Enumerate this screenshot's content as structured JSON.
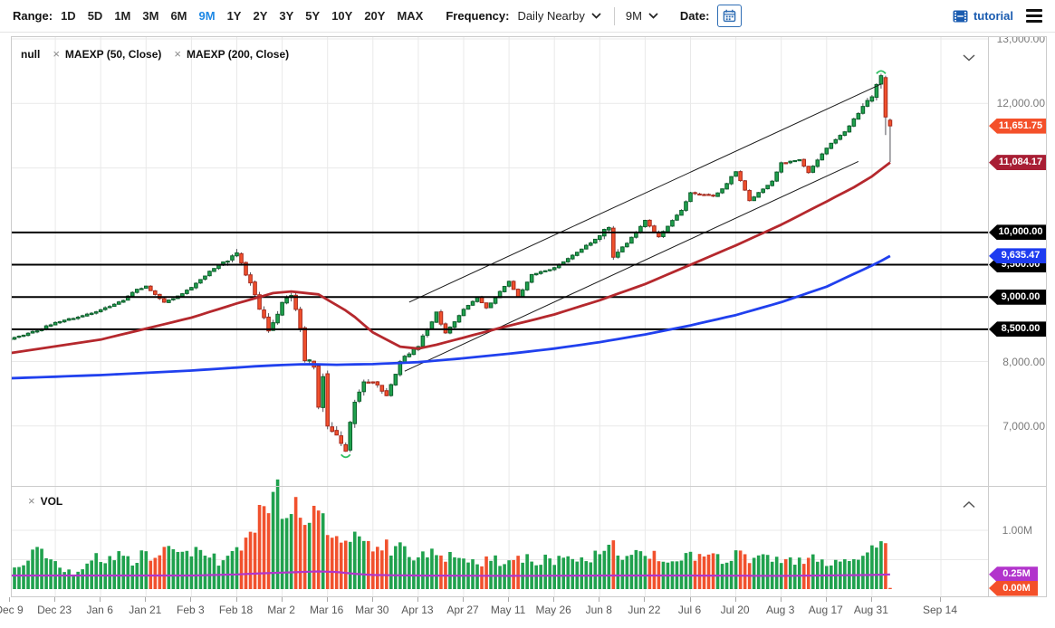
{
  "toolbar": {
    "range_label": "Range:",
    "range_options": [
      "1D",
      "5D",
      "1M",
      "3M",
      "6M",
      "9M",
      "1Y",
      "2Y",
      "3Y",
      "5Y",
      "10Y",
      "20Y",
      "MAX"
    ],
    "range_selected": "9M",
    "frequency_label": "Frequency:",
    "frequency_value": "Daily Nearby",
    "period_value": "9M",
    "date_label": "Date:",
    "tutorial_label": "tutorial"
  },
  "main_panel": {
    "legend_items": [
      {
        "label": "null",
        "removable": false
      },
      {
        "label": "MAEXP (50, Close)",
        "removable": true
      },
      {
        "label": "MAEXP (200, Close)",
        "removable": true
      }
    ]
  },
  "volume_panel": {
    "legend_items": [
      {
        "label": "VOL",
        "removable": true
      }
    ]
  },
  "right_axis": {
    "gray_labels": [
      {
        "text": "13,000.00",
        "price": 13000
      },
      {
        "text": "12,000.00",
        "price": 12000
      },
      {
        "text": "8,000.00",
        "price": 8000
      },
      {
        "text": "7,000.00",
        "price": 7000
      }
    ],
    "level_badges": [
      {
        "text": "10,000.00",
        "price": 10000
      },
      {
        "text": "9,500.00",
        "price": 9500
      },
      {
        "text": "9,000.00",
        "price": 9000
      },
      {
        "text": "8,500.00",
        "price": 8500
      }
    ],
    "value_badges": [
      {
        "text": "11,651.75",
        "price": 11651.75,
        "color": "#f4502a",
        "name": "last-price-badge"
      },
      {
        "text": "11,084.17",
        "price": 11084.17,
        "color": "#a81e34",
        "name": "ma50-value-badge"
      },
      {
        "text": "9,635.47",
        "price": 9635.47,
        "color": "#1e3cf0",
        "name": "ma200-value-badge"
      }
    ],
    "volume_gray_labels": [
      {
        "text": "1.00M",
        "value": 1.0
      }
    ],
    "volume_badges": [
      {
        "text": "0.25M",
        "value": 0.25,
        "color": "#b234cc",
        "name": "volume-ma-badge"
      },
      {
        "text": "0.00M",
        "value": 0.0,
        "color": "#f4502a",
        "name": "last-volume-badge"
      }
    ]
  },
  "colors": {
    "candle_up": "#1fa14d",
    "candle_up_border": "#0b5f2b",
    "candle_down": "#f1512d",
    "candle_down_border": "#a8291d",
    "wick": "#52525a",
    "ma50": "#b5282d",
    "ma200": "#2040ee",
    "volume_ma": "#b234cc",
    "support_line": "#000000",
    "channel_line": "#1a1a1a",
    "gridline": "#e9e9e9",
    "marker": "#2fbf62",
    "range_selected": "#1e88e5",
    "tutorial_blue": "#1b5cb0"
  },
  "chart_data": {
    "type": "candlestick",
    "x_tick_labels": [
      "Dec 9",
      "Dec 23",
      "Jan 6",
      "Jan 21",
      "Feb 3",
      "Feb 18",
      "Mar 2",
      "Mar 16",
      "Mar 30",
      "Apr 13",
      "Apr 27",
      "May 11",
      "May 26",
      "Jun 8",
      "Jun 22",
      "Jul 6",
      "Jul 20",
      "Aug 3",
      "Aug 17",
      "Aug 31",
      "Sep 14"
    ],
    "price_axis_visible_labels": [
      "13,000.00",
      "12,000.00",
      "8,000.00",
      "7,000.00"
    ],
    "price_range": [
      6100,
      13050
    ],
    "volume_axis_visible_labels": [
      "1.00M"
    ],
    "volume_range_millions": [
      0,
      1.75
    ],
    "support_levels": [
      10000,
      9500,
      9000,
      8500
    ],
    "last_close": 11651.75,
    "ma50_last": 11084.17,
    "ma200_last": 9635.47,
    "volume_ma_last_millions": 0.25,
    "last_volume_millions": 0.0,
    "price_gridlines": [
      13000,
      12000,
      11000,
      10000,
      9000,
      8000,
      7000
    ],
    "volume_gridlines_millions": [
      1.0,
      0.5
    ],
    "channel": {
      "upper": [
        [
          88,
          8920
        ],
        [
          192,
          12300
        ]
      ],
      "lower": [
        [
          87,
          7850
        ],
        [
          187,
          11100
        ]
      ]
    },
    "markers": [
      {
        "day": 74,
        "price": 6600,
        "shape": "arc-under"
      },
      {
        "day": 192,
        "price": 12490,
        "shape": "arc-over"
      }
    ],
    "close_anchors": [
      [
        0,
        8350
      ],
      [
        6,
        8480
      ],
      [
        10,
        8610
      ],
      [
        15,
        8690
      ],
      [
        20,
        8800
      ],
      [
        25,
        8950
      ],
      [
        28,
        9120
      ],
      [
        30,
        9160
      ],
      [
        34,
        8920
      ],
      [
        37,
        9010
      ],
      [
        40,
        9150
      ],
      [
        45,
        9450
      ],
      [
        48,
        9580
      ],
      [
        50,
        9700
      ],
      [
        53,
        9200
      ],
      [
        57,
        8470
      ],
      [
        60,
        8900
      ],
      [
        62,
        9010
      ],
      [
        64,
        8550
      ],
      [
        65,
        8040
      ],
      [
        67,
        7940
      ],
      [
        68,
        7300
      ],
      [
        69,
        7810
      ],
      [
        70,
        7000
      ],
      [
        72,
        6900
      ],
      [
        74,
        6650
      ],
      [
        76,
        7400
      ],
      [
        78,
        7670
      ],
      [
        80,
        7700
      ],
      [
        83,
        7470
      ],
      [
        86,
        8000
      ],
      [
        90,
        8250
      ],
      [
        94,
        8750
      ],
      [
        96,
        8450
      ],
      [
        100,
        8800
      ],
      [
        103,
        9000
      ],
      [
        105,
        8830
      ],
      [
        110,
        9250
      ],
      [
        112,
        9000
      ],
      [
        115,
        9350
      ],
      [
        120,
        9450
      ],
      [
        124,
        9640
      ],
      [
        130,
        9950
      ],
      [
        132,
        10090
      ],
      [
        133,
        9590
      ],
      [
        135,
        9750
      ],
      [
        140,
        10180
      ],
      [
        143,
        9940
      ],
      [
        146,
        10180
      ],
      [
        148,
        10350
      ],
      [
        150,
        10620
      ],
      [
        155,
        10570
      ],
      [
        157,
        10670
      ],
      [
        160,
        10950
      ],
      [
        163,
        10500
      ],
      [
        168,
        10800
      ],
      [
        170,
        11070
      ],
      [
        174,
        11130
      ],
      [
        176,
        10920
      ],
      [
        180,
        11310
      ],
      [
        184,
        11560
      ],
      [
        187,
        11850
      ],
      [
        190,
        12110
      ],
      [
        191,
        12290
      ],
      [
        192,
        12430
      ],
      [
        193,
        11790
      ],
      [
        194,
        11651.75
      ]
    ],
    "volume_anchors": [
      [
        0,
        0.4
      ],
      [
        2,
        0.35
      ],
      [
        4,
        0.5
      ],
      [
        6,
        0.78
      ],
      [
        8,
        0.55
      ],
      [
        10,
        0.45
      ],
      [
        12,
        0.3
      ],
      [
        15,
        0.28
      ],
      [
        17,
        0.45
      ],
      [
        20,
        0.55
      ],
      [
        22,
        0.48
      ],
      [
        25,
        0.65
      ],
      [
        27,
        0.5
      ],
      [
        30,
        0.62
      ],
      [
        32,
        0.55
      ],
      [
        34,
        0.7
      ],
      [
        36,
        0.6
      ],
      [
        38,
        0.55
      ],
      [
        40,
        0.65
      ],
      [
        42,
        0.6
      ],
      [
        44,
        0.55
      ],
      [
        46,
        0.48
      ],
      [
        48,
        0.55
      ],
      [
        50,
        0.72
      ],
      [
        52,
        0.9
      ],
      [
        54,
        1.15
      ],
      [
        56,
        1.3
      ],
      [
        57,
        1.45
      ],
      [
        58,
        1.52
      ],
      [
        59,
        1.58
      ],
      [
        60,
        1.48
      ],
      [
        61,
        1.3
      ],
      [
        62,
        1.25
      ],
      [
        63,
        1.35
      ],
      [
        64,
        1.2
      ],
      [
        65,
        1.3
      ],
      [
        66,
        1.15
      ],
      [
        68,
        1.28
      ],
      [
        70,
        1.1
      ],
      [
        72,
        0.95
      ],
      [
        74,
        1.02
      ],
      [
        76,
        0.88
      ],
      [
        78,
        0.83
      ],
      [
        80,
        0.72
      ],
      [
        82,
        0.77
      ],
      [
        84,
        0.68
      ],
      [
        86,
        0.72
      ],
      [
        88,
        0.63
      ],
      [
        90,
        0.58
      ],
      [
        92,
        0.62
      ],
      [
        94,
        0.58
      ],
      [
        96,
        0.55
      ],
      [
        98,
        0.52
      ],
      [
        100,
        0.58
      ],
      [
        102,
        0.52
      ],
      [
        104,
        0.48
      ],
      [
        106,
        0.55
      ],
      [
        108,
        0.48
      ],
      [
        110,
        0.45
      ],
      [
        112,
        0.58
      ],
      [
        114,
        0.5
      ],
      [
        116,
        0.46
      ],
      [
        118,
        0.52
      ],
      [
        120,
        0.48
      ],
      [
        122,
        0.55
      ],
      [
        124,
        0.5
      ],
      [
        126,
        0.58
      ],
      [
        128,
        0.52
      ],
      [
        130,
        0.6
      ],
      [
        132,
        0.68
      ],
      [
        133,
        0.8
      ],
      [
        135,
        0.58
      ],
      [
        137,
        0.52
      ],
      [
        140,
        0.62
      ],
      [
        142,
        0.55
      ],
      [
        144,
        0.5
      ],
      [
        146,
        0.55
      ],
      [
        148,
        0.48
      ],
      [
        150,
        0.55
      ],
      [
        152,
        0.5
      ],
      [
        155,
        0.62
      ],
      [
        157,
        0.52
      ],
      [
        160,
        0.58
      ],
      [
        162,
        0.52
      ],
      [
        164,
        0.46
      ],
      [
        166,
        0.52
      ],
      [
        168,
        0.46
      ],
      [
        170,
        0.52
      ],
      [
        172,
        0.46
      ],
      [
        174,
        0.5
      ],
      [
        176,
        0.56
      ],
      [
        178,
        0.48
      ],
      [
        180,
        0.44
      ],
      [
        182,
        0.5
      ],
      [
        184,
        0.46
      ],
      [
        186,
        0.52
      ],
      [
        188,
        0.56
      ],
      [
        190,
        0.62
      ],
      [
        191,
        0.66
      ],
      [
        192,
        0.72
      ],
      [
        193,
        0.92
      ],
      [
        194,
        0.02
      ]
    ],
    "ma50_anchors": [
      [
        0,
        8130
      ],
      [
        20,
        8340
      ],
      [
        40,
        8680
      ],
      [
        50,
        8900
      ],
      [
        58,
        9060
      ],
      [
        62,
        9085
      ],
      [
        68,
        9040
      ],
      [
        75,
        8750
      ],
      [
        80,
        8450
      ],
      [
        86,
        8230
      ],
      [
        90,
        8200
      ],
      [
        94,
        8260
      ],
      [
        100,
        8370
      ],
      [
        108,
        8520
      ],
      [
        115,
        8640
      ],
      [
        120,
        8730
      ],
      [
        130,
        8950
      ],
      [
        140,
        9200
      ],
      [
        150,
        9500
      ],
      [
        160,
        9800
      ],
      [
        170,
        10120
      ],
      [
        180,
        10480
      ],
      [
        186,
        10700
      ],
      [
        190,
        10870
      ],
      [
        194,
        11084.17
      ]
    ],
    "ma200_anchors": [
      [
        0,
        7740
      ],
      [
        20,
        7790
      ],
      [
        40,
        7860
      ],
      [
        55,
        7930
      ],
      [
        65,
        7960
      ],
      [
        72,
        7950
      ],
      [
        80,
        7960
      ],
      [
        90,
        7990
      ],
      [
        100,
        8050
      ],
      [
        110,
        8120
      ],
      [
        120,
        8200
      ],
      [
        130,
        8300
      ],
      [
        140,
        8420
      ],
      [
        150,
        8560
      ],
      [
        160,
        8720
      ],
      [
        170,
        8920
      ],
      [
        180,
        9160
      ],
      [
        187,
        9390
      ],
      [
        191,
        9520
      ],
      [
        194,
        9635.47
      ]
    ],
    "volume_ma_anchors": [
      [
        0,
        0.23
      ],
      [
        40,
        0.23
      ],
      [
        50,
        0.25
      ],
      [
        56,
        0.27
      ],
      [
        60,
        0.28
      ],
      [
        64,
        0.29
      ],
      [
        68,
        0.3
      ],
      [
        72,
        0.29
      ],
      [
        76,
        0.26
      ],
      [
        80,
        0.24
      ],
      [
        90,
        0.23
      ],
      [
        110,
        0.225
      ],
      [
        130,
        0.23
      ],
      [
        150,
        0.23
      ],
      [
        170,
        0.225
      ],
      [
        190,
        0.24
      ],
      [
        194,
        0.25
      ]
    ]
  }
}
